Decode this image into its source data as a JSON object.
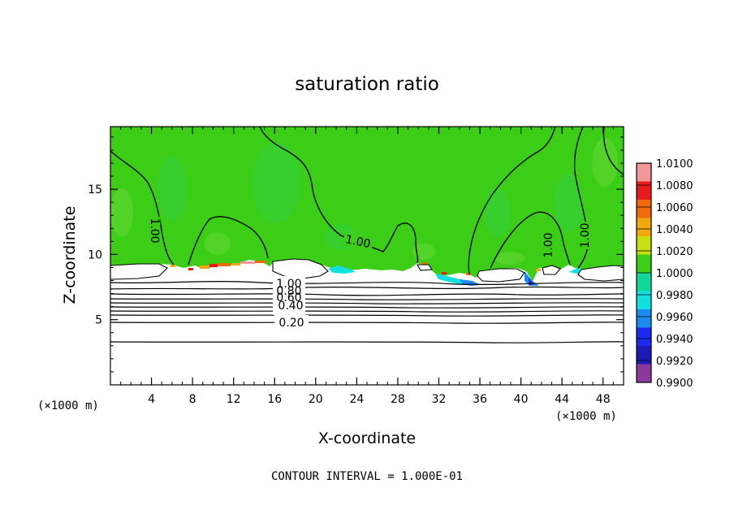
{
  "chart_data": {
    "type": "heatmap",
    "title": "saturation ratio",
    "xlabel": "X-coordinate",
    "ylabel": "Z-coordinate",
    "x_unit_left": "(×1000 m)",
    "x_unit_right": "(×1000 m)",
    "xlim": [
      0,
      50
    ],
    "ylim": [
      0,
      19.8
    ],
    "xticks": [
      4,
      8,
      12,
      16,
      20,
      24,
      28,
      32,
      36,
      40,
      44,
      48
    ],
    "xtick_labels": [
      "4",
      "8",
      "12",
      "16",
      "20",
      "24",
      "28",
      "32",
      "36",
      "40",
      "44",
      "48"
    ],
    "yticks": [
      5,
      10,
      15
    ],
    "ytick_labels": [
      "5",
      "10",
      "15"
    ],
    "colorbar": {
      "levels": [
        0.99,
        0.992,
        0.994,
        0.996,
        0.998,
        1.0,
        1.002,
        1.004,
        1.006,
        1.008,
        1.01
      ],
      "labels": [
        "0.9900",
        "0.9920",
        "0.9940",
        "0.9960",
        "0.9980",
        "1.0000",
        "1.0020",
        "1.0040",
        "1.0060",
        "1.0080",
        "1.0100"
      ],
      "colors": [
        "#8b3a9c",
        "#1c1cb4",
        "#1a2af0",
        "#1a8cf0",
        "#10e0e0",
        "#10d89a",
        "#3ccd16",
        "#c8e012",
        "#f0a80c",
        "#f06a0c",
        "#e81a1a",
        "#f29898"
      ]
    },
    "contour_interval_text": "CONTOUR INTERVAL = 1.000E-01",
    "contour_labels": [
      {
        "text": "1.00",
        "x": 4.3,
        "z": 12.1,
        "angle": 90
      },
      {
        "text": "1.00",
        "x": 23.9,
        "z": 10.9,
        "angle": 12
      },
      {
        "text": "1.00",
        "x": 43.0,
        "z": 10.6,
        "angle": -90
      },
      {
        "text": "1.00",
        "x": 47.0,
        "z": 11.3,
        "angle": -90
      },
      {
        "text": "1.00",
        "x": 17.3,
        "z": 7.9,
        "angle": 0
      },
      {
        "text": "0.80",
        "x": 17.3,
        "z": 7.3,
        "angle": 0
      },
      {
        "text": "0.60",
        "x": 17.3,
        "z": 6.8,
        "angle": 0
      },
      {
        "text": "0.40",
        "x": 17.6,
        "z": 6.2,
        "angle": 0
      },
      {
        "text": "0.20",
        "x": 17.6,
        "z": 4.8,
        "angle": 0
      }
    ],
    "saturated_layer_top_z": 9.2,
    "field_background_value": 1.0
  }
}
